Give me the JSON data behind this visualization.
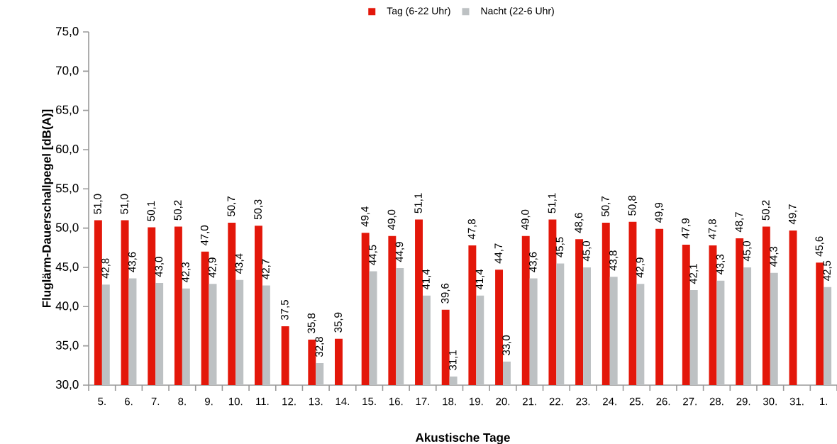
{
  "chart_data": {
    "type": "bar",
    "xlabel": "Akustische Tage",
    "ylabel": "Fluglärm-Dauerschallpegel [dB(A)]",
    "legend": "top",
    "categories": [
      "5.",
      "6.",
      "7.",
      "8.",
      "9.",
      "10.",
      "11.",
      "12.",
      "13.",
      "14.",
      "15.",
      "16.",
      "17.",
      "18.",
      "19.",
      "20.",
      "21.",
      "22.",
      "23.",
      "24.",
      "25.",
      "26.",
      "27.",
      "28.",
      "29.",
      "30.",
      "31.",
      "1."
    ],
    "series": [
      {
        "name": "Tag (6-22 Uhr)",
        "color": "#e3170a",
        "values": [
          51.0,
          51.0,
          50.1,
          50.2,
          47.0,
          50.7,
          50.3,
          37.5,
          35.8,
          35.9,
          49.4,
          49.0,
          51.1,
          39.6,
          47.8,
          44.7,
          49.0,
          51.1,
          48.6,
          50.7,
          50.8,
          49.9,
          47.9,
          47.8,
          48.7,
          50.2,
          49.7,
          45.6
        ],
        "value_labels": [
          "51,0",
          "51,0",
          "50,1",
          "50,2",
          "47,0",
          "50,7",
          "50,3",
          "37,5",
          "35,8",
          "35,9",
          "49,4",
          "49,0",
          "51,1",
          "39,6",
          "47,8",
          "44,7",
          "49,0",
          "51,1",
          "48,6",
          "50,7",
          "50,8",
          "49,9",
          "47,9",
          "47,8",
          "48,7",
          "50,2",
          "49,7",
          "45,6"
        ]
      },
      {
        "name": "Nacht (22-6 Uhr)",
        "color": "#bdc1c3",
        "values": [
          42.8,
          43.6,
          43.0,
          42.3,
          42.9,
          43.4,
          42.7,
          null,
          32.8,
          null,
          44.5,
          44.9,
          41.4,
          31.1,
          41.4,
          33.0,
          43.6,
          45.5,
          45.0,
          43.8,
          42.9,
          null,
          42.1,
          43.3,
          45.0,
          44.3,
          null,
          42.5
        ],
        "value_labels": [
          "42,8",
          "43,6",
          "43,0",
          "42,3",
          "42,9",
          "43,4",
          "42,7",
          null,
          "32,8",
          null,
          "44,5",
          "44,9",
          "41,4",
          "31,1",
          "41,4",
          "33,0",
          "43,6",
          "45,5",
          "45,0",
          "43,8",
          "42,9",
          null,
          "42,1",
          "43,3",
          "45,0",
          "44,3",
          null,
          "42,5"
        ]
      }
    ],
    "ylim": [
      30,
      75
    ],
    "yticks": [
      {
        "value": 30,
        "label": "30,0"
      },
      {
        "value": 35,
        "label": "35,0"
      },
      {
        "value": 40,
        "label": "40,0"
      },
      {
        "value": 45,
        "label": "45,0"
      },
      {
        "value": 50,
        "label": "50,0"
      },
      {
        "value": 55,
        "label": "55,0"
      },
      {
        "value": 60,
        "label": "60,0"
      },
      {
        "value": 65,
        "label": "65,0"
      },
      {
        "value": 70,
        "label": "70,0"
      },
      {
        "value": 75,
        "label": "75,0"
      }
    ]
  }
}
